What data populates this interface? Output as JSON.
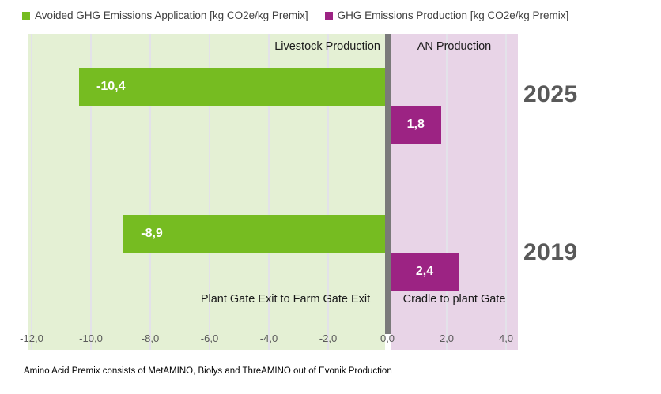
{
  "legend": {
    "items": [
      {
        "label": "Avoided GHG Emissions Application [kg CO2e/kg Premix]",
        "color": "#76bc21"
      },
      {
        "label": "GHG Emissions Production [kg CO2e/kg Premix]",
        "color": "#9c2383"
      }
    ]
  },
  "chart_data": {
    "type": "bar",
    "orientation": "horizontal",
    "title": "",
    "categories": [
      "2025",
      "2019"
    ],
    "series": [
      {
        "name": "Avoided GHG Emissions Application [kg CO2e/kg Premix]",
        "color": "#76bc21",
        "values": [
          -10.4,
          -8.9
        ],
        "value_labels": [
          "-10,4",
          "-8,9"
        ]
      },
      {
        "name": "GHG Emissions Production [kg CO2e/kg Premix]",
        "color": "#9c2383",
        "values": [
          1.8,
          2.4
        ],
        "value_labels": [
          "1,8",
          "2,4"
        ]
      }
    ],
    "xlim": [
      -12,
      4
    ],
    "x_tick_values": [
      -12,
      -10,
      -8,
      -6,
      -4,
      -2,
      0,
      2,
      4
    ],
    "x_ticks": [
      "-12,0",
      "-10,0",
      "-8,0",
      "-6,0",
      "-4,0",
      "-2,0",
      "0,0",
      "2,0",
      "4,0"
    ],
    "grid": true,
    "legend_position": "top",
    "annotations": {
      "left_region_top": "Livestock Production",
      "right_region_top": "AN Production",
      "left_region_bottom": "Plant Gate Exit to Farm Gate Exit",
      "right_region_bottom": "Cradle to plant Gate"
    },
    "region_colors": {
      "left_background": "#e4f0d4",
      "right_background": "#e8d4e7",
      "zero_divider": "#7a7a7a"
    }
  },
  "footnote": "Amino Acid Premix consists of MetAMINO, Biolys and ThreAMINO out of Evonik Production"
}
